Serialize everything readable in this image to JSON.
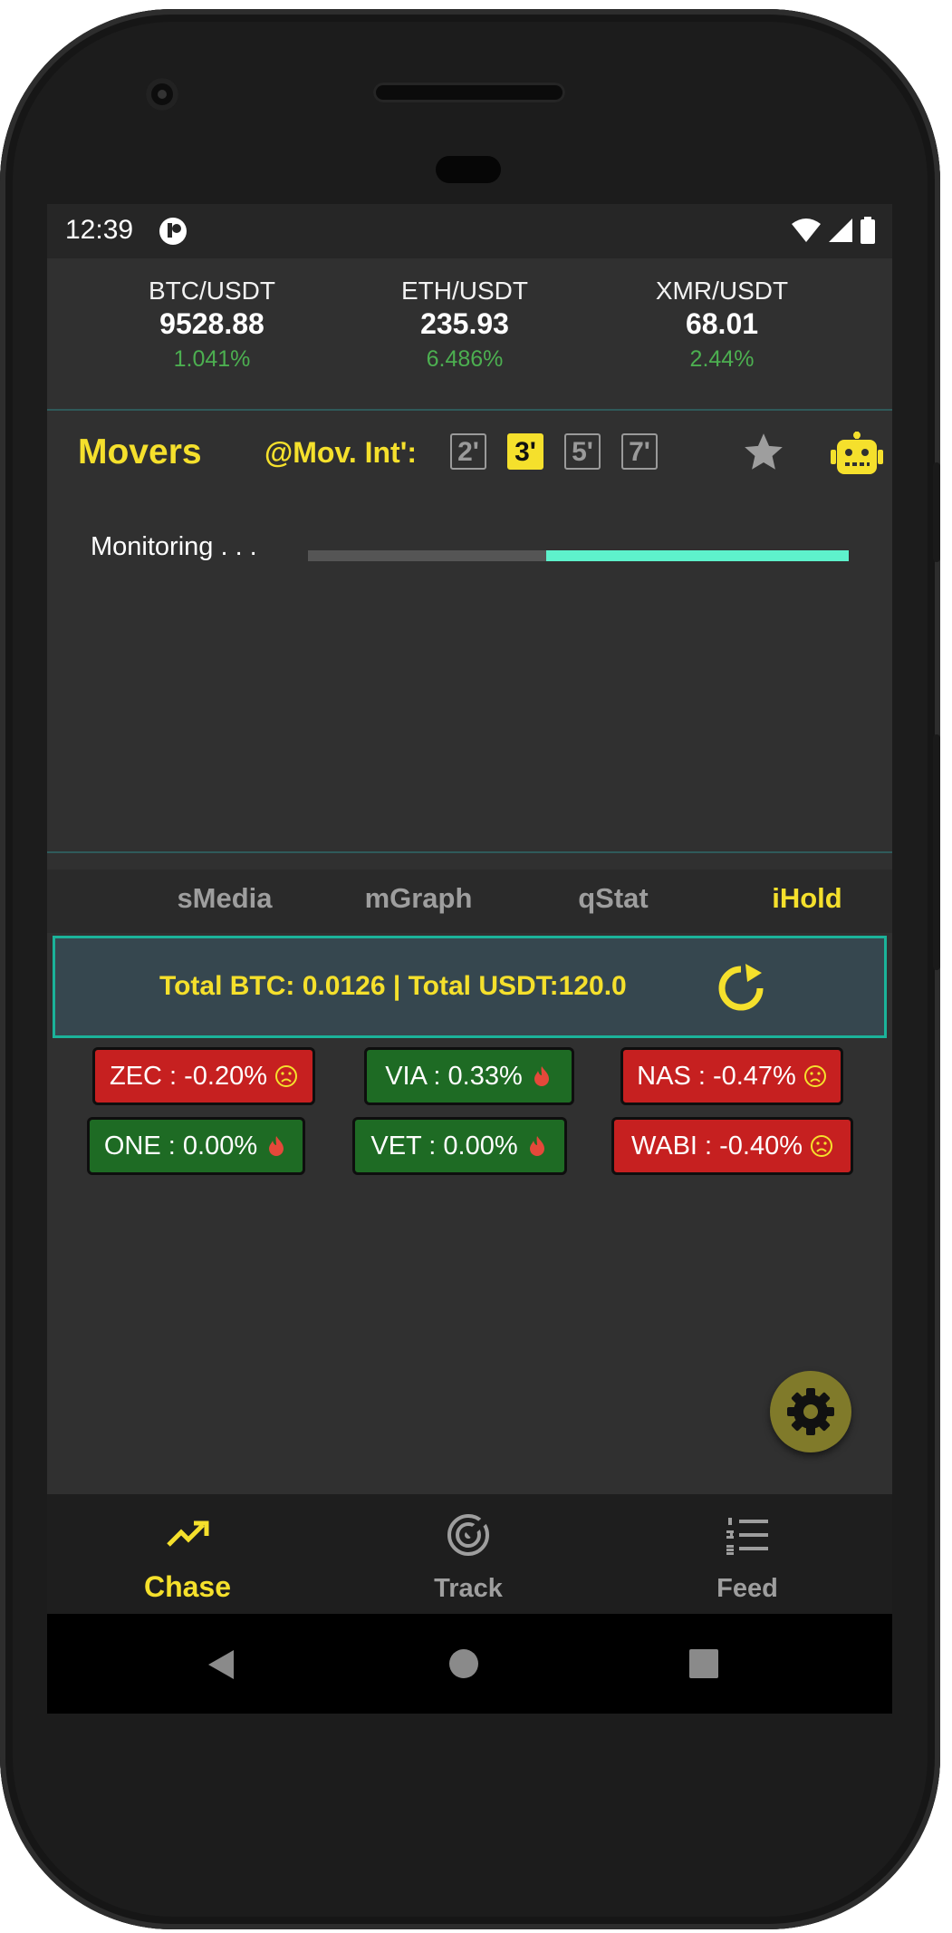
{
  "status_bar": {
    "time": "12:39"
  },
  "tickers": [
    {
      "pair": "BTC/USDT",
      "price": "9528.88",
      "change": "1.041%"
    },
    {
      "pair": "ETH/USDT",
      "price": "235.93",
      "change": "6.486%"
    },
    {
      "pair": "XMR/USDT",
      "price": "68.01",
      "change": "2.44%"
    }
  ],
  "movers": {
    "title": "Movers",
    "interval_label": "@Mov. Int':",
    "intervals": [
      "2'",
      "3'",
      "5'",
      "7'"
    ],
    "active_interval": "3'",
    "monitoring_label": "Monitoring . . .",
    "progress_fraction": 0.56
  },
  "tabs": [
    {
      "label": "sMedia"
    },
    {
      "label": "mGraph"
    },
    {
      "label": "qStat"
    },
    {
      "label": "iHold",
      "active": true
    }
  ],
  "holdings": {
    "totals": "Total BTC: 0.0126 | Total USDT:120.0",
    "coins": [
      {
        "label": "ZEC : -0.20%",
        "trend": "down",
        "icon": "sad-face-icon"
      },
      {
        "label": "VIA : 0.33%",
        "trend": "up",
        "icon": "flame-icon"
      },
      {
        "label": "NAS : -0.47%",
        "trend": "down",
        "icon": "sad-face-icon"
      },
      {
        "label": "ONE : 0.00%",
        "trend": "up",
        "icon": "flame-icon"
      },
      {
        "label": "VET : 0.00%",
        "trend": "up",
        "icon": "flame-icon"
      },
      {
        "label": "WABI : -0.40%",
        "trend": "down",
        "icon": "sad-face-icon"
      }
    ]
  },
  "bottom_nav": [
    {
      "label": "Chase",
      "icon": "trending-up-icon",
      "active": true
    },
    {
      "label": "Track",
      "icon": "radar-icon"
    },
    {
      "label": "Feed",
      "icon": "numbered-list-icon"
    }
  ],
  "colors": {
    "accent": "#f5e02c",
    "positive": "#4caf50",
    "teal": "#5ef2cc",
    "loss_bg": "#c62020",
    "gain_bg": "#1e6b24"
  }
}
